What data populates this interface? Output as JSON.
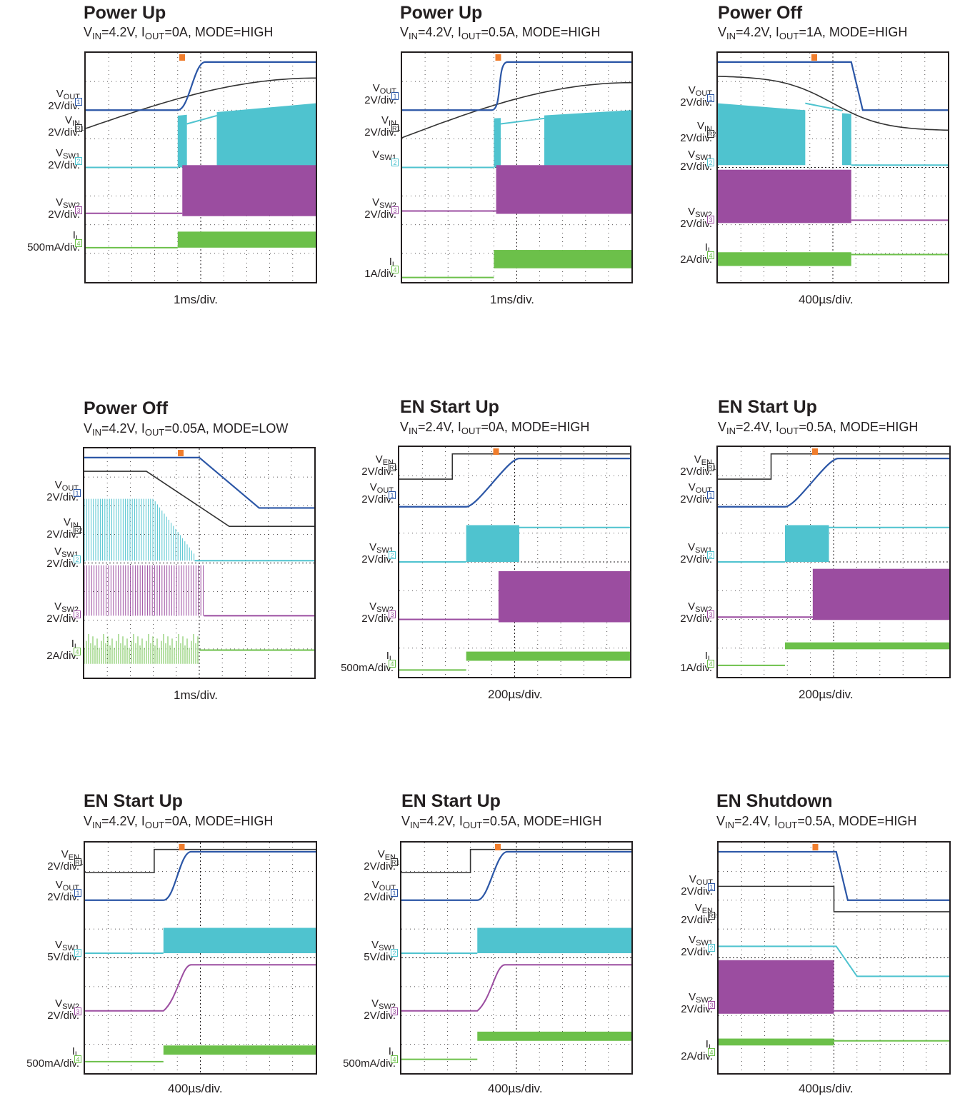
{
  "chart_data": [
    {
      "type": "line",
      "title": "Power Up",
      "subtitle": [
        "V",
        "IN",
        "=4.2V, I",
        "OUT",
        "=0A, MODE=HIGH"
      ],
      "timebase": "1ms/div.",
      "traces": [
        {
          "name": [
            "V",
            "OUT",
            ""
          ],
          "scale": "2V/div.",
          "marker": "1",
          "color": "#2b56a6"
        },
        {
          "name": [
            "V",
            "IN",
            ""
          ],
          "scale": "2V/div.",
          "marker": "R1",
          "color": "#333333"
        },
        {
          "name": [
            "V",
            "SW1",
            ""
          ],
          "scale": "2V/div.",
          "marker": "2",
          "color": "#4fc3cf"
        },
        {
          "name": [
            "V",
            "SW2",
            ""
          ],
          "scale": "2V/div.",
          "marker": "3",
          "color": "#9b4da0"
        },
        {
          "name": [
            "I",
            "L",
            ""
          ],
          "scale": "500mA/div.",
          "marker": "4",
          "color": "#6cc04a"
        }
      ]
    },
    {
      "type": "line",
      "title": "Power Up",
      "subtitle": [
        "V",
        "IN",
        "=4.2V, I",
        "OUT",
        "=0.5A, MODE=HIGH"
      ],
      "timebase": "1ms/div.",
      "traces": [
        {
          "name": [
            "V",
            "OUT",
            ""
          ],
          "scale": "2V/div.",
          "marker": "1",
          "color": "#2b56a6"
        },
        {
          "name": [
            "V",
            "IN",
            ""
          ],
          "scale": "2V/div.",
          "marker": "R1",
          "color": "#333333"
        },
        {
          "name": [
            "V",
            "SW1",
            ""
          ],
          "scale": "",
          "marker": "2",
          "color": "#4fc3cf"
        },
        {
          "name": [
            "V",
            "SW2",
            ""
          ],
          "scale": "2V/div.",
          "marker": "3",
          "color": "#9b4da0"
        },
        {
          "name": [
            "I",
            "L",
            ""
          ],
          "scale": "1A/div.",
          "marker": "4",
          "color": "#6cc04a"
        }
      ]
    },
    {
      "type": "line",
      "title": "Power Off",
      "subtitle": [
        "V",
        "IN",
        "=4.2V, I",
        "OUT",
        "=1A, MODE=HIGH"
      ],
      "timebase": "400µs/div.",
      "traces": [
        {
          "name": [
            "V",
            "OUT",
            ""
          ],
          "scale": "2V/div.",
          "marker": "1",
          "color": "#2b56a6"
        },
        {
          "name": [
            "V",
            "IN",
            ""
          ],
          "scale": "2V/div.",
          "marker": "R2",
          "color": "#333333"
        },
        {
          "name": [
            "V",
            "SW1",
            ""
          ],
          "scale": "2V/div.",
          "marker": "2",
          "color": "#4fc3cf"
        },
        {
          "name": [
            "V",
            "SW2",
            ""
          ],
          "scale": "2V/div.",
          "marker": "3",
          "color": "#9b4da0"
        },
        {
          "name": [
            "I",
            "L",
            ""
          ],
          "scale": "2A/div.",
          "marker": "4",
          "color": "#6cc04a"
        }
      ]
    },
    {
      "type": "line",
      "title": "Power Off",
      "subtitle": [
        "V",
        "IN",
        "=4.2V, I",
        "OUT",
        "=0.05A, MODE=LOW"
      ],
      "timebase": "1ms/div.",
      "traces": [
        {
          "name": [
            "V",
            "OUT",
            ""
          ],
          "scale": "2V/div.",
          "marker": "1",
          "color": "#2b56a6"
        },
        {
          "name": [
            "V",
            "IN",
            ""
          ],
          "scale": "2V/div.",
          "marker": "R2",
          "color": "#333333"
        },
        {
          "name": [
            "V",
            "SW1",
            ""
          ],
          "scale": "2V/div.",
          "marker": "2",
          "color": "#4fc3cf"
        },
        {
          "name": [
            "V",
            "SW2",
            ""
          ],
          "scale": "2V/div.",
          "marker": "3",
          "color": "#9b4da0"
        },
        {
          "name": [
            "I",
            "L",
            ""
          ],
          "scale": "2A/div.",
          "marker": "4",
          "color": "#6cc04a"
        }
      ]
    },
    {
      "type": "line",
      "title": "EN Start Up",
      "subtitle": [
        "V",
        "IN",
        "=2.4V, I",
        "OUT",
        "=0A, MODE=HIGH"
      ],
      "timebase": "200µs/div.",
      "traces": [
        {
          "name": [
            "V",
            "EN",
            ""
          ],
          "scale": "2V/div.",
          "marker": "R1",
          "color": "#333333"
        },
        {
          "name": [
            "V",
            "OUT",
            ""
          ],
          "scale": "2V/div.",
          "marker": "1",
          "color": "#2b56a6"
        },
        {
          "name": [
            "V",
            "SW1",
            ""
          ],
          "scale": "2V/div.",
          "marker": "2",
          "color": "#4fc3cf"
        },
        {
          "name": [
            "V",
            "SW2",
            ""
          ],
          "scale": "2V/div.",
          "marker": "3",
          "color": "#9b4da0"
        },
        {
          "name": [
            "I",
            "L",
            ""
          ],
          "scale": "500mA/div.",
          "marker": "4",
          "color": "#6cc04a"
        }
      ]
    },
    {
      "type": "line",
      "title": "EN Start Up",
      "subtitle": [
        "V",
        "IN",
        "=2.4V, I",
        "OUT",
        "=0.5A, MODE=HIGH"
      ],
      "timebase": "200µs/div.",
      "traces": [
        {
          "name": [
            "V",
            "EN",
            ""
          ],
          "scale": "2V/div.",
          "marker": "R1",
          "color": "#333333"
        },
        {
          "name": [
            "V",
            "OUT",
            ""
          ],
          "scale": "2V/div.",
          "marker": "1",
          "color": "#2b56a6"
        },
        {
          "name": [
            "V",
            "SW1",
            ""
          ],
          "scale": "2V/div.",
          "marker": "2",
          "color": "#4fc3cf"
        },
        {
          "name": [
            "V",
            "SW2",
            ""
          ],
          "scale": "2V/div.",
          "marker": "3",
          "color": "#9b4da0"
        },
        {
          "name": [
            "I",
            "L",
            ""
          ],
          "scale": "1A/div.",
          "marker": "4",
          "color": "#6cc04a"
        }
      ]
    },
    {
      "type": "line",
      "title": "EN Start Up",
      "subtitle": [
        "V",
        "IN",
        "=4.2V, I",
        "OUT",
        "=0A, MODE=HIGH"
      ],
      "timebase": "400µs/div.",
      "traces": [
        {
          "name": [
            "V",
            "EN",
            ""
          ],
          "scale": "2V/div.",
          "marker": "R1",
          "color": "#333333"
        },
        {
          "name": [
            "V",
            "OUT",
            ""
          ],
          "scale": "2V/div.",
          "marker": "1",
          "color": "#2b56a6"
        },
        {
          "name": [
            "V",
            "SW1",
            ""
          ],
          "scale": "5V/div.",
          "marker": "2",
          "color": "#4fc3cf"
        },
        {
          "name": [
            "V",
            "SW2",
            ""
          ],
          "scale": "2V/div.",
          "marker": "3",
          "color": "#9b4da0"
        },
        {
          "name": [
            "I",
            "L",
            ""
          ],
          "scale": "500mA/div.",
          "marker": "4",
          "color": "#6cc04a"
        }
      ]
    },
    {
      "type": "line",
      "title": "EN Start Up",
      "subtitle": [
        "V",
        "IN",
        "=4.2V, I",
        "OUT",
        "=0.5A, MODE=HIGH"
      ],
      "timebase": "400µs/div.",
      "traces": [
        {
          "name": [
            "V",
            "EN",
            ""
          ],
          "scale": "2V/div.",
          "marker": "R1",
          "color": "#333333"
        },
        {
          "name": [
            "V",
            "OUT",
            ""
          ],
          "scale": "2V/div.",
          "marker": "1",
          "color": "#2b56a6"
        },
        {
          "name": [
            "V",
            "SW1",
            ""
          ],
          "scale": "5V/div.",
          "marker": "2",
          "color": "#4fc3cf"
        },
        {
          "name": [
            "V",
            "SW2",
            ""
          ],
          "scale": "2V/div.",
          "marker": "3",
          "color": "#9b4da0"
        },
        {
          "name": [
            "I",
            "L",
            ""
          ],
          "scale": "500mA/div.",
          "marker": "4",
          "color": "#6cc04a"
        }
      ]
    },
    {
      "type": "line",
      "title": "EN Shutdown",
      "subtitle": [
        "V",
        "IN",
        "=2.4V, I",
        "OUT",
        "=0.5A, MODE=HIGH"
      ],
      "timebase": "400µs/div.",
      "traces": [
        {
          "name": [
            "V",
            "OUT",
            ""
          ],
          "scale": "2V/div.",
          "marker": "1",
          "color": "#2b56a6"
        },
        {
          "name": [
            "V",
            "EN",
            ""
          ],
          "scale": "2V/div.",
          "marker": "R2",
          "color": "#333333"
        },
        {
          "name": [
            "V",
            "SW1",
            ""
          ],
          "scale": "2V/div.",
          "marker": "2",
          "color": "#4fc3cf"
        },
        {
          "name": [
            "V",
            "SW2",
            ""
          ],
          "scale": "2V/div.",
          "marker": "3",
          "color": "#9b4da0"
        },
        {
          "name": [
            "I",
            "L",
            ""
          ],
          "scale": "2A/div.",
          "marker": "4",
          "color": "#6cc04a"
        }
      ]
    }
  ]
}
